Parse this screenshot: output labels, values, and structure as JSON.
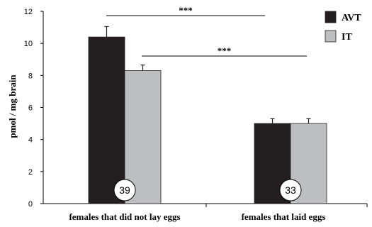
{
  "chart_data": {
    "type": "bar",
    "categories": [
      "females that did not lay eggs",
      "females that laid eggs"
    ],
    "series": [
      {
        "name": "AVT",
        "values": [
          10.4,
          5.0
        ],
        "errors": [
          0.65,
          0.3
        ]
      },
      {
        "name": "IT",
        "values": [
          8.3,
          5.0
        ],
        "errors": [
          0.35,
          0.3
        ]
      }
    ],
    "sample_sizes": [
      "39",
      "33"
    ],
    "ylabel": "pmol / mg brain",
    "ylim": [
      0,
      12
    ],
    "yticks": [
      0,
      2,
      4,
      6,
      8,
      10,
      12
    ],
    "legend": {
      "position": "top-right",
      "entries": [
        "AVT",
        "IT"
      ]
    },
    "colors": {
      "AVT": "#231f20",
      "IT": "#bcbec0"
    },
    "significance": [
      {
        "label": "***",
        "from": {
          "category": 0,
          "series": "AVT"
        },
        "to": {
          "category": 1,
          "series": "AVT"
        }
      },
      {
        "label": "***",
        "from": {
          "category": 0,
          "series": "IT"
        },
        "to": {
          "category": 1,
          "series": "IT"
        }
      }
    ],
    "grid": false
  }
}
